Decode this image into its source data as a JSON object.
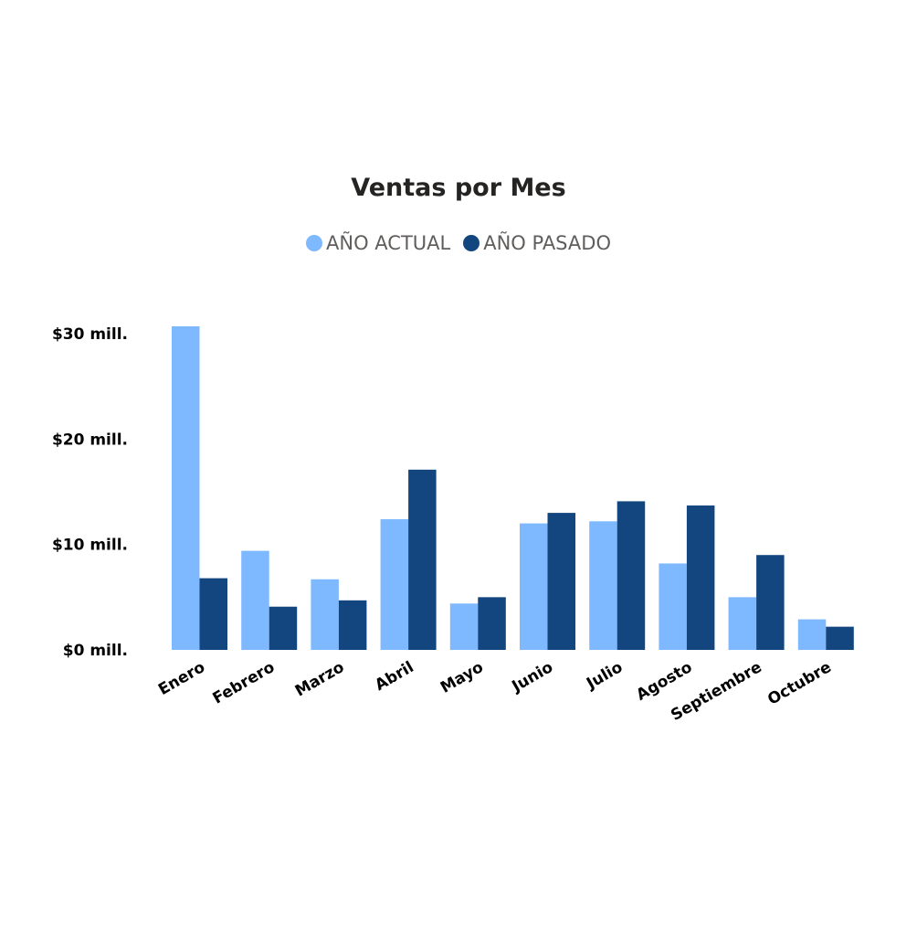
{
  "chart_data": {
    "type": "bar",
    "title": "Ventas por Mes",
    "xlabel": "",
    "ylabel": "",
    "categories": [
      "Enero",
      "Febrero",
      "Marzo",
      "Abril",
      "Mayo",
      "Junio",
      "Julio",
      "Agosto",
      "Septiembre",
      "Octubre"
    ],
    "series": [
      {
        "name": "AÑO ACTUAL",
        "color": "#7eb9ff",
        "values": [
          30.7,
          9.4,
          6.7,
          12.4,
          4.4,
          12.0,
          12.2,
          8.2,
          5.0,
          2.9
        ]
      },
      {
        "name": "AÑO PASADO",
        "color": "#13457f",
        "values": [
          6.8,
          4.1,
          4.7,
          17.1,
          5.0,
          13.0,
          14.1,
          13.7,
          9.0,
          2.2
        ]
      }
    ],
    "ylim": [
      0,
      30.7
    ],
    "y_ticks": [
      {
        "value": 0,
        "label": "$0 mill."
      },
      {
        "value": 10,
        "label": "$10 mill."
      },
      {
        "value": 20,
        "label": "$20 mill."
      },
      {
        "value": 30,
        "label": "$30 mill."
      }
    ],
    "grid": false,
    "legend_position": "top-center"
  }
}
